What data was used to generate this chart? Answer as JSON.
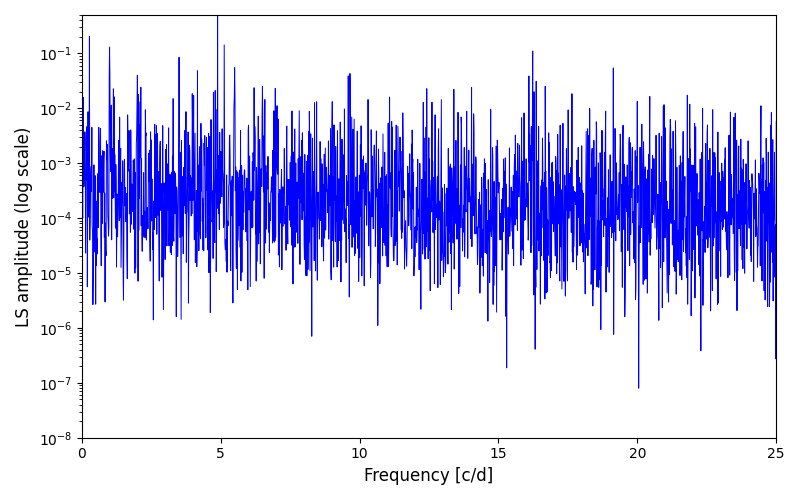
{
  "title": "",
  "xlabel": "Frequency [c/d]",
  "ylabel": "LS amplitude (log scale)",
  "xlim": [
    0,
    25
  ],
  "ylim": [
    1e-08,
    0.5
  ],
  "line_color": "#0000ff",
  "line_width": 0.7,
  "yscale": "log",
  "figsize": [
    8.0,
    5.0
  ],
  "dpi": 100,
  "seed": 12345,
  "n_points": 2000,
  "freq_max": 25.0,
  "background_color": "#ffffff",
  "prominent_peaks": [
    {
      "freq": 1.0,
      "amp": 0.13
    },
    {
      "freq": 2.0,
      "amp": 0.04
    },
    {
      "freq": 3.5,
      "amp": 0.085
    },
    {
      "freq": 5.5,
      "amp": 0.055
    },
    {
      "freq": 6.5,
      "amp": 0.025
    },
    {
      "freq": 9.0,
      "amp": 0.004
    },
    {
      "freq": 14.5,
      "amp": 0.0012
    },
    {
      "freq": 16.0,
      "amp": 0.0012
    }
  ]
}
